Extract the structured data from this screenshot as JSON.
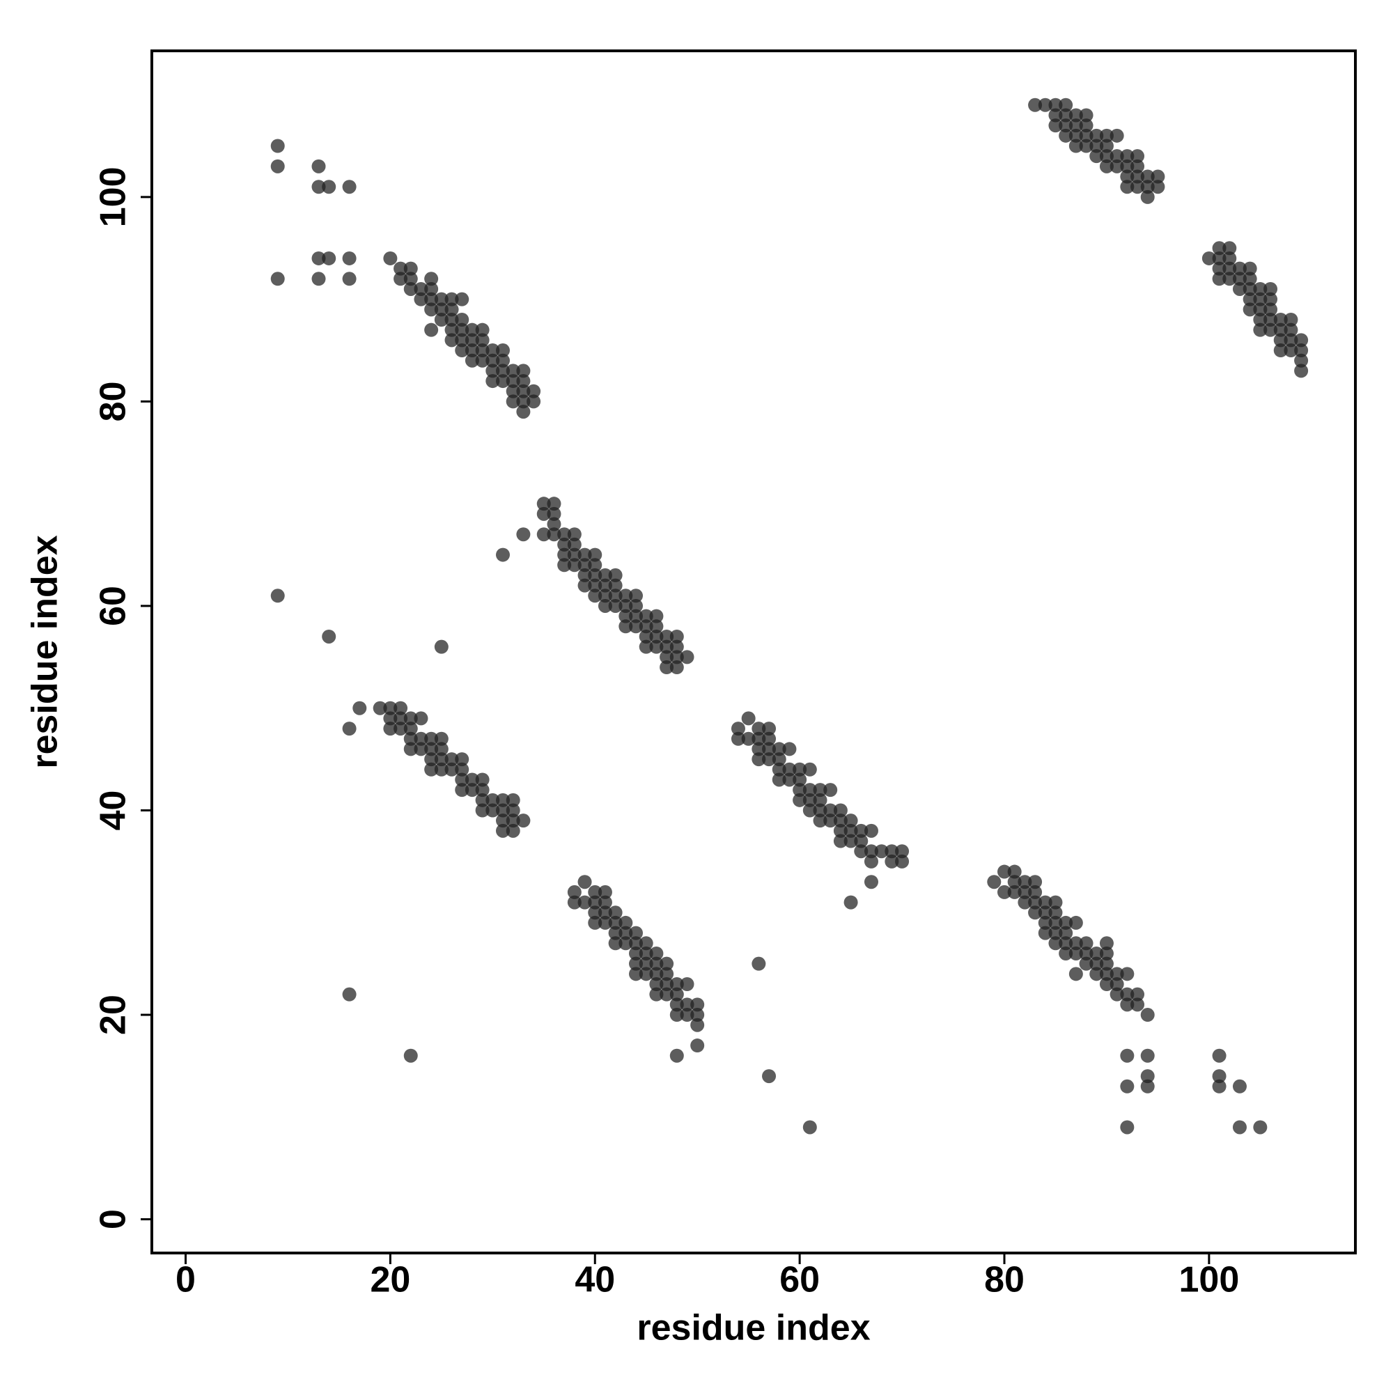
{
  "chart_data": {
    "type": "scatter",
    "xlabel": "residue index",
    "ylabel": "residue index",
    "xlim": [
      -3.3,
      114.3
    ],
    "ylim": [
      -3.3,
      114.3
    ],
    "xticks": [
      0,
      20,
      40,
      60,
      80,
      100
    ],
    "yticks": [
      0,
      20,
      40,
      60,
      80,
      100
    ],
    "color": "#1e1e1e",
    "opacity": 0.72,
    "x": [
      83,
      84,
      85,
      85,
      85,
      86,
      86,
      86,
      86,
      87,
      87,
      87,
      87,
      88,
      88,
      88,
      88,
      89,
      89,
      89,
      90,
      90,
      90,
      90,
      91,
      91,
      91,
      92,
      92,
      92,
      92,
      93,
      93,
      93,
      93,
      94,
      94,
      94,
      95,
      95,
      100,
      101,
      101,
      101,
      101,
      102,
      102,
      102,
      102,
      103,
      103,
      103,
      104,
      104,
      104,
      104,
      104,
      105,
      105,
      105,
      105,
      105,
      106,
      106,
      106,
      106,
      106,
      107,
      107,
      107,
      107,
      108,
      108,
      108,
      108,
      109,
      109,
      109,
      109,
      9,
      9,
      9,
      13,
      13,
      14,
      16,
      13,
      14,
      16,
      13,
      16,
      20,
      21,
      22,
      21,
      22,
      22,
      23,
      23,
      24,
      24,
      24,
      24,
      24,
      25,
      25,
      25,
      26,
      26,
      26,
      26,
      26,
      27,
      27,
      27,
      27,
      27,
      28,
      28,
      28,
      28,
      29,
      29,
      29,
      29,
      30,
      30,
      30,
      30,
      31,
      31,
      31,
      31,
      32,
      32,
      32,
      32,
      33,
      33,
      33,
      33,
      33,
      34,
      34,
      35,
      36,
      35,
      36,
      36,
      35,
      36,
      37,
      38,
      37,
      38,
      37,
      38,
      39,
      40,
      37,
      38,
      39,
      40,
      39,
      40,
      41,
      42,
      39,
      40,
      41,
      42,
      40,
      41,
      42,
      43,
      44,
      41,
      42,
      43,
      44,
      43,
      44,
      45,
      46,
      43,
      44,
      45,
      46,
      45,
      46,
      47,
      48,
      45,
      46,
      47,
      48,
      47,
      48,
      49,
      47,
      48,
      31,
      33,
      9,
      14,
      25,
      16,
      17,
      19,
      20,
      21,
      20,
      21,
      22,
      23,
      20,
      21,
      22,
      22,
      23,
      24,
      25,
      22,
      23,
      24,
      25,
      24,
      25,
      26,
      27,
      24,
      25,
      26,
      27,
      27,
      28,
      29,
      27,
      28,
      29,
      29,
      30,
      31,
      32,
      29,
      30,
      31,
      32,
      31,
      32,
      33,
      31,
      32,
      54,
      55,
      56,
      57,
      54,
      55,
      56,
      57,
      56,
      57,
      58,
      59,
      56,
      57,
      58,
      58,
      59,
      60,
      61,
      58,
      59,
      60,
      60,
      61,
      62,
      63,
      60,
      61,
      62,
      61,
      62,
      63,
      64,
      62,
      63,
      64,
      65,
      64,
      65,
      66,
      67,
      64,
      65,
      66,
      66,
      67,
      68,
      69,
      70,
      67,
      69,
      70,
      67,
      65,
      56,
      57,
      61,
      38,
      39,
      40,
      41,
      38,
      39,
      40,
      41,
      40,
      41,
      42,
      40,
      41,
      42,
      43,
      42,
      43,
      44,
      42,
      43,
      44,
      45,
      44,
      45,
      46,
      44,
      45,
      46,
      47,
      44,
      45,
      46,
      47,
      46,
      47,
      48,
      49,
      46,
      47,
      48,
      48,
      49,
      50,
      48,
      49,
      50,
      50,
      50,
      48,
      16,
      22,
      79,
      80,
      81,
      80,
      81,
      81,
      82,
      83,
      82,
      83,
      82,
      83,
      84,
      85,
      83,
      84,
      85,
      84,
      85,
      86,
      87,
      84,
      85,
      86,
      86,
      87,
      85,
      86,
      87,
      88,
      89,
      88,
      87,
      88,
      89,
      90,
      90,
      90,
      89,
      90,
      91,
      92,
      90,
      91,
      91,
      92,
      92,
      93,
      93,
      94,
      92,
      94,
      92,
      94,
      94,
      92,
      101,
      101,
      101,
      103,
      103,
      105
    ],
    "y": [
      109,
      109,
      109,
      108,
      107,
      109,
      108,
      107,
      106,
      108,
      107,
      106,
      105,
      108,
      107,
      106,
      105,
      106,
      105,
      104,
      106,
      105,
      104,
      103,
      106,
      104,
      103,
      104,
      103,
      102,
      101,
      104,
      103,
      102,
      101,
      102,
      101,
      100,
      102,
      101,
      94,
      95,
      94,
      93,
      92,
      95,
      94,
      93,
      92,
      93,
      92,
      91,
      93,
      92,
      91,
      90,
      89,
      91,
      90,
      89,
      88,
      87,
      91,
      90,
      89,
      88,
      87,
      88,
      87,
      86,
      85,
      88,
      87,
      86,
      85,
      86,
      85,
      84,
      83,
      105,
      103,
      92,
      103,
      101,
      101,
      101,
      94,
      94,
      94,
      92,
      92,
      94,
      93,
      93,
      92,
      92,
      91,
      91,
      90,
      92,
      91,
      90,
      89,
      87,
      90,
      89,
      88,
      90,
      89,
      88,
      87,
      86,
      90,
      88,
      87,
      86,
      85,
      87,
      86,
      85,
      84,
      87,
      86,
      85,
      84,
      85,
      84,
      83,
      82,
      85,
      84,
      83,
      82,
      83,
      82,
      81,
      80,
      83,
      82,
      81,
      80,
      79,
      81,
      80,
      70,
      70,
      69,
      69,
      68,
      67,
      67,
      67,
      67,
      66,
      66,
      65,
      65,
      65,
      65,
      64,
      64,
      64,
      64,
      63,
      63,
      63,
      63,
      62,
      62,
      62,
      62,
      61,
      61,
      61,
      61,
      61,
      60,
      60,
      60,
      60,
      59,
      59,
      59,
      59,
      58,
      58,
      58,
      58,
      57,
      57,
      57,
      57,
      56,
      56,
      56,
      56,
      55,
      55,
      55,
      54,
      54,
      65,
      67,
      61,
      57,
      56,
      48,
      50,
      50,
      50,
      50,
      49,
      49,
      49,
      49,
      48,
      48,
      48,
      47,
      47,
      47,
      47,
      46,
      46,
      46,
      46,
      45,
      45,
      45,
      45,
      44,
      44,
      44,
      44,
      43,
      43,
      43,
      42,
      42,
      42,
      41,
      41,
      41,
      41,
      40,
      40,
      40,
      40,
      39,
      39,
      39,
      38,
      38,
      48,
      49,
      48,
      48,
      47,
      47,
      47,
      47,
      46,
      46,
      46,
      46,
      45,
      45,
      45,
      44,
      44,
      44,
      44,
      43,
      43,
      43,
      42,
      42,
      42,
      42,
      41,
      41,
      41,
      40,
      40,
      40,
      40,
      39,
      39,
      39,
      39,
      38,
      38,
      38,
      38,
      37,
      37,
      37,
      36,
      36,
      36,
      36,
      36,
      35,
      35,
      35,
      33,
      31,
      25,
      14,
      9,
      32,
      33,
      32,
      32,
      31,
      31,
      31,
      31,
      30,
      30,
      30,
      29,
      29,
      29,
      29,
      28,
      28,
      28,
      27,
      27,
      27,
      27,
      26,
      26,
      26,
      25,
      25,
      25,
      25,
      24,
      24,
      24,
      24,
      23,
      23,
      23,
      23,
      22,
      22,
      22,
      21,
      21,
      21,
      20,
      20,
      20,
      19,
      17,
      16,
      22,
      16,
      33,
      34,
      34,
      32,
      32,
      33,
      33,
      33,
      32,
      32,
      31,
      31,
      31,
      31,
      30,
      30,
      30,
      29,
      29,
      29,
      29,
      28,
      28,
      28,
      27,
      27,
      27,
      26,
      26,
      26,
      26,
      27,
      24,
      25,
      25,
      25,
      27,
      26,
      24,
      24,
      24,
      24,
      23,
      23,
      22,
      22,
      21,
      22,
      21,
      20,
      16,
      16,
      13,
      14,
      13,
      9,
      16,
      14,
      13,
      13,
      9,
      9
    ]
  }
}
